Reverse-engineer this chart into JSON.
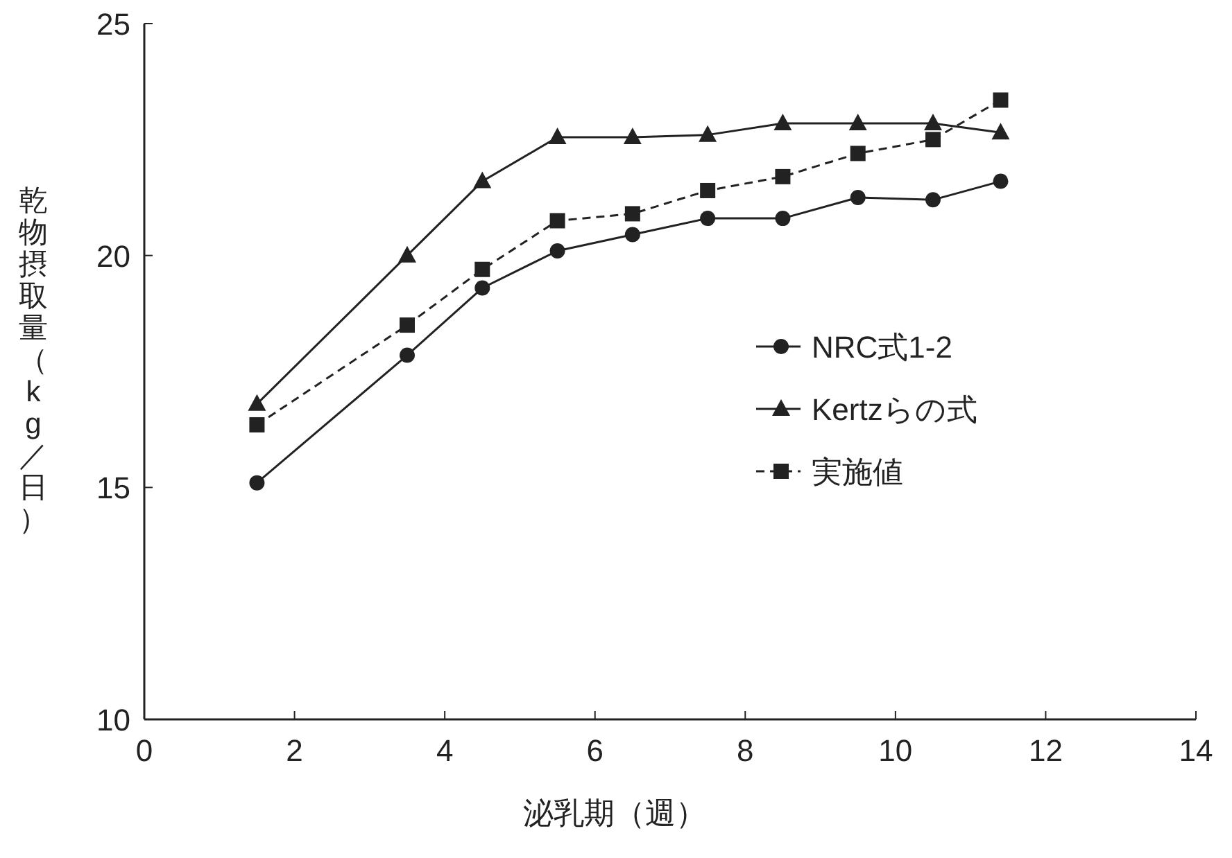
{
  "chart_data": {
    "type": "line",
    "xlabel": "泌乳期（週）",
    "ylabel": "乾物摂取量（kg／日）",
    "x": [
      1.5,
      3.5,
      4.5,
      5.5,
      6.5,
      7.5,
      8.5,
      9.5,
      10.5,
      11.4
    ],
    "series": [
      {
        "name": "NRC式1-2",
        "color": "#222222",
        "marker": "circle",
        "line_style": "solid",
        "values": [
          15.1,
          17.85,
          19.3,
          20.1,
          20.45,
          20.8,
          20.8,
          21.25,
          21.2,
          21.6
        ]
      },
      {
        "name": "Kertzらの式",
        "color": "#222222",
        "marker": "triangle",
        "line_style": "solid",
        "values": [
          16.8,
          20.0,
          21.6,
          22.55,
          22.55,
          22.6,
          22.85,
          22.85,
          22.85,
          22.65
        ]
      },
      {
        "name": "実施値",
        "color": "#222222",
        "marker": "square",
        "line_style": "dashed",
        "values": [
          16.35,
          18.5,
          19.7,
          20.75,
          20.9,
          21.4,
          21.7,
          22.2,
          22.5,
          23.35
        ]
      }
    ],
    "xlim": [
      0,
      14
    ],
    "ylim": [
      10,
      25
    ],
    "xticks": [
      0,
      2,
      4,
      6,
      8,
      10,
      12,
      14
    ],
    "yticks": [
      10,
      15,
      20,
      25
    ],
    "grid": false,
    "legend": "right"
  }
}
